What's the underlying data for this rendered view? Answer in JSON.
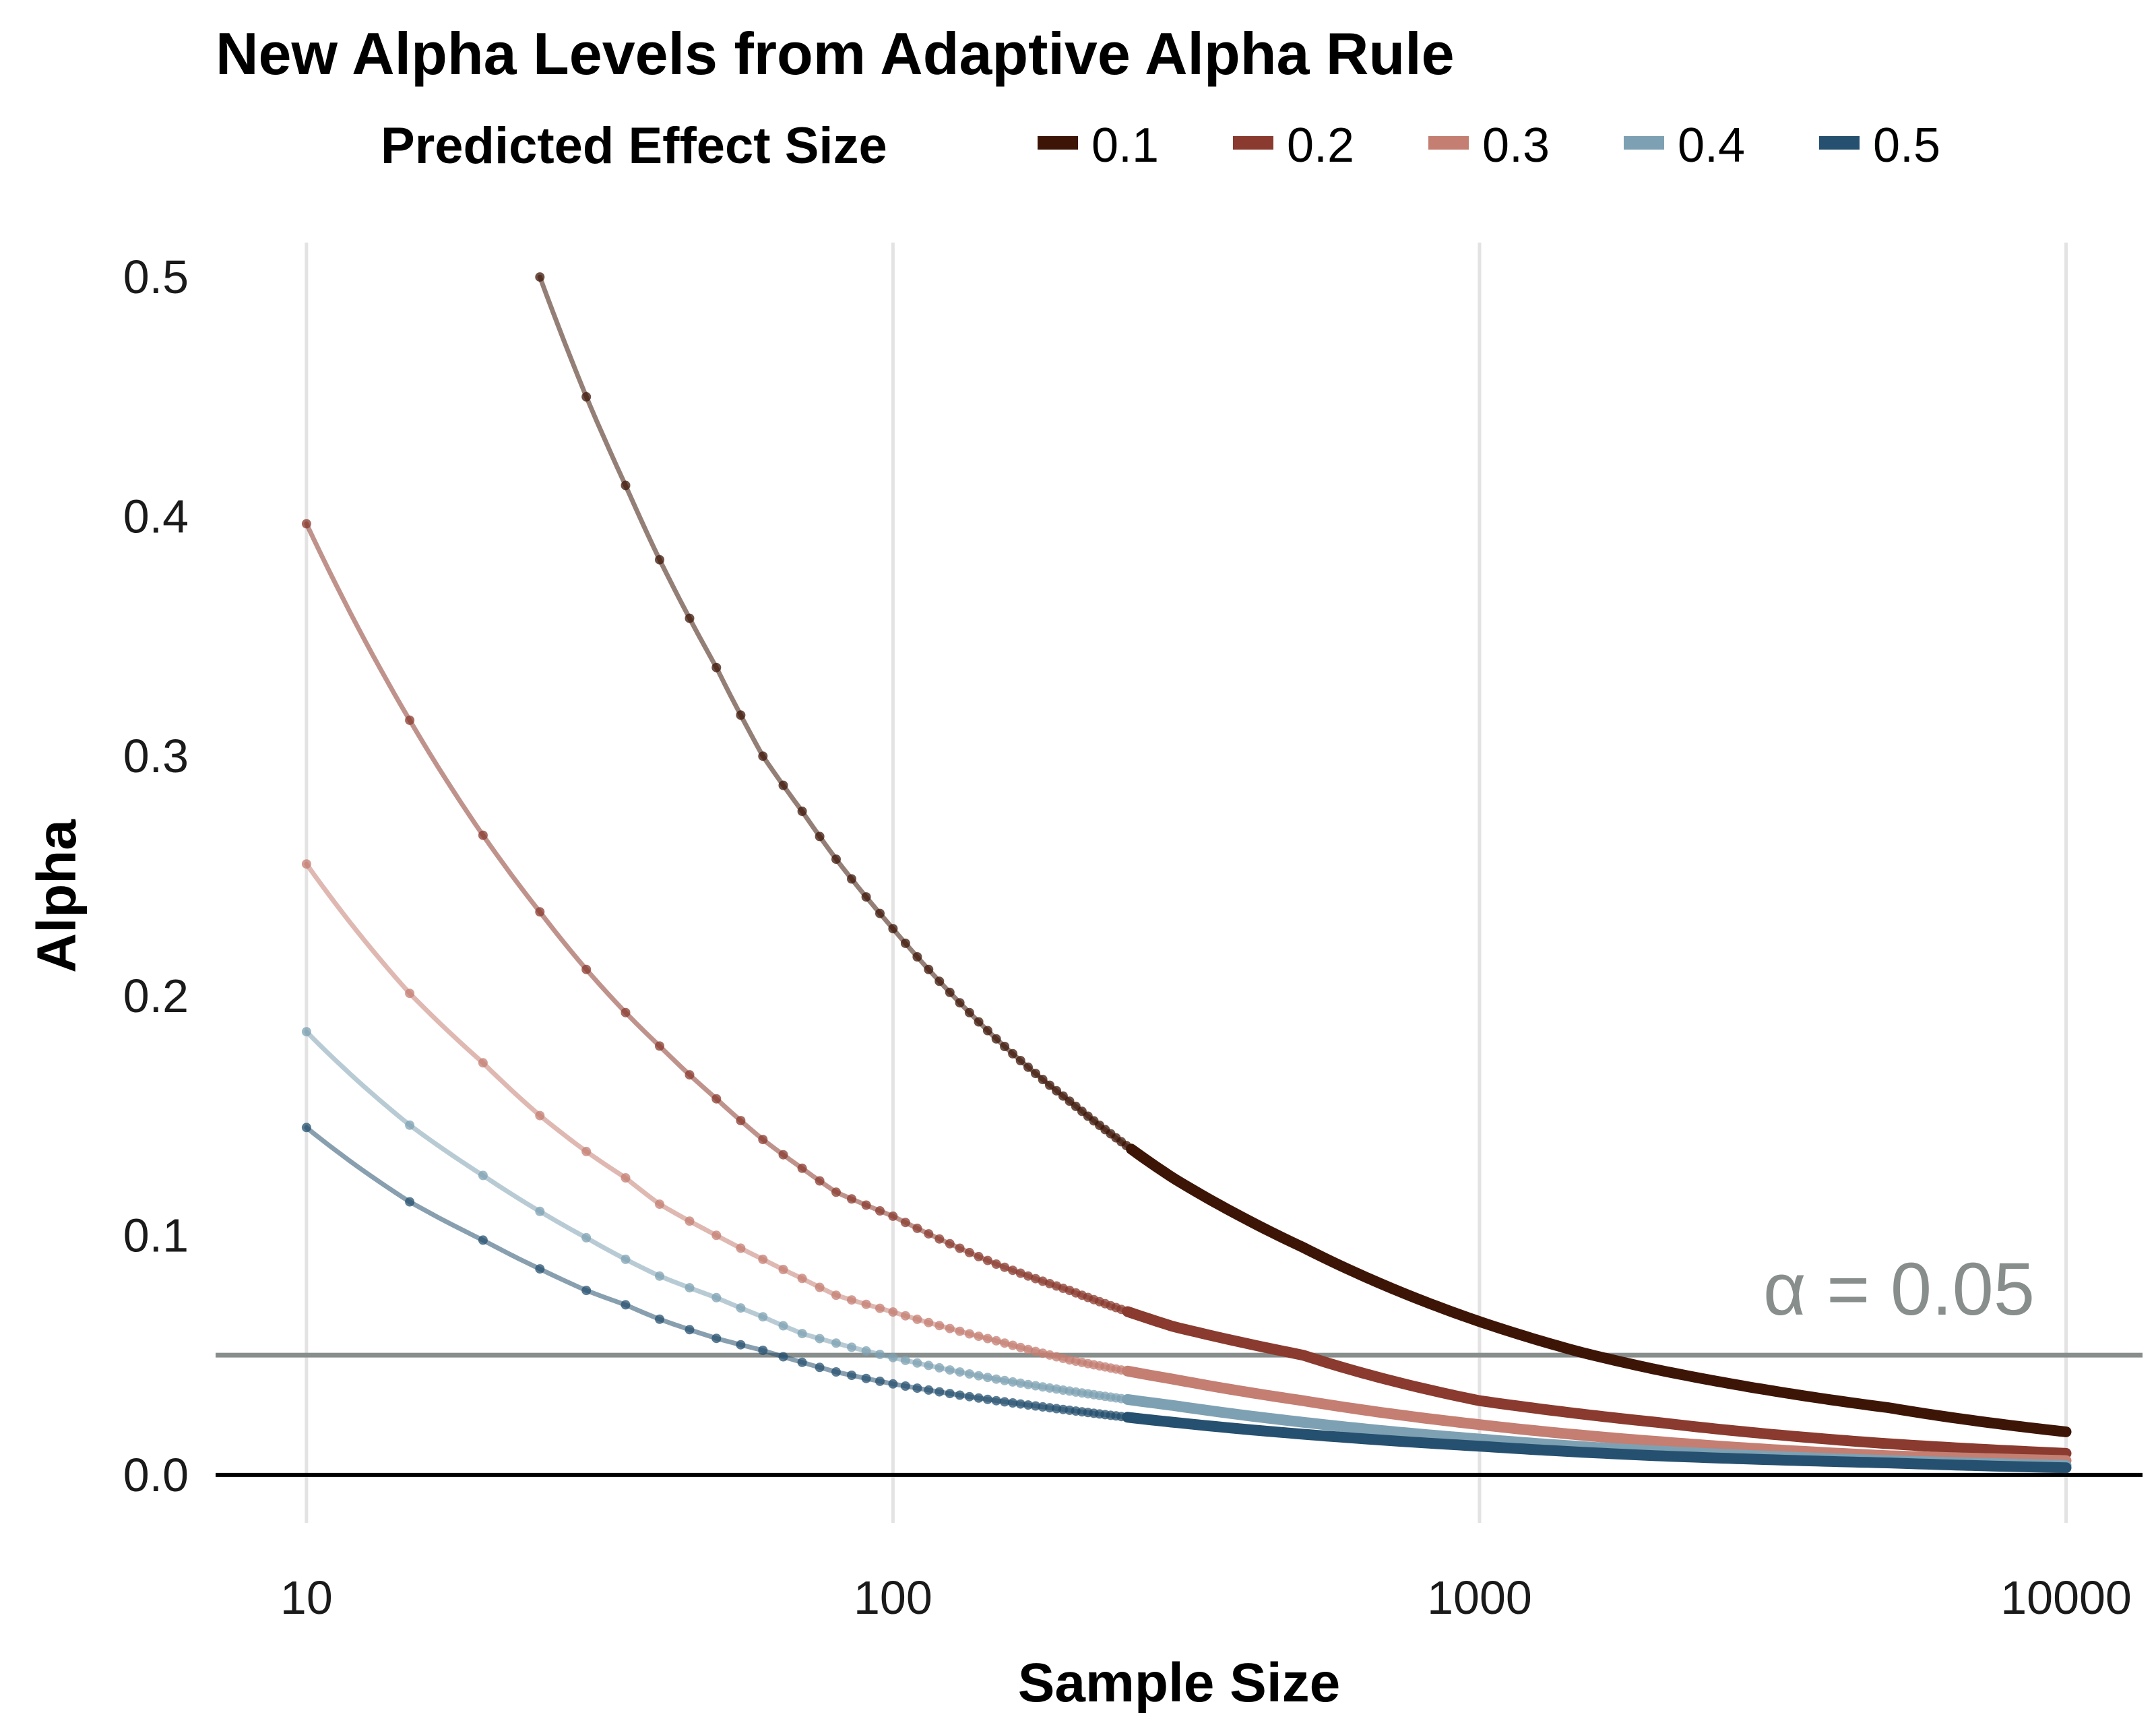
{
  "chart_data": {
    "type": "line",
    "title": "New Alpha Levels from Adaptive Alpha Rule",
    "xlabel": "Sample Size",
    "ylabel": "Alpha",
    "x_scale": "log10",
    "xlim": [
      7,
      13500
    ],
    "ylim": [
      -0.02,
      0.52
    ],
    "x_ticks": [
      10,
      100,
      1000,
      10000
    ],
    "x_tick_labels": [
      "10",
      "100",
      "1000",
      "10000"
    ],
    "y_ticks": [
      0,
      0.1,
      0.2,
      0.3,
      0.4,
      0.5
    ],
    "y_tick_labels": [
      "0.0",
      "0.1",
      "0.2",
      "0.3",
      "0.4",
      "0.5"
    ],
    "grid": "vertical major only",
    "legend": {
      "title": "Predicted Effect Size",
      "placement": "top",
      "entries": [
        "0.1",
        "0.2",
        "0.3",
        "0.4",
        "0.5"
      ]
    },
    "reference_lines": [
      {
        "axis": "y",
        "value": 0.05,
        "label": "α = 0.05",
        "color": "#888e8b"
      },
      {
        "axis": "y",
        "value": 0,
        "color": "#000000"
      }
    ],
    "series": [
      {
        "name": "0.1",
        "color": "#3d1507",
        "x": [
          25,
          30,
          35,
          40,
          50,
          60,
          70,
          80,
          100,
          150,
          200,
          300,
          500,
          1000,
          1500,
          2000,
          3000,
          5000,
          10000
        ],
        "y": [
          0.5,
          0.45,
          0.413,
          0.382,
          0.337,
          0.3,
          0.277,
          0.257,
          0.228,
          0.182,
          0.156,
          0.124,
          0.095,
          0.064,
          0.051,
          0.044,
          0.036,
          0.028,
          0.018
        ]
      },
      {
        "name": "0.2",
        "color": "#8a3a2e",
        "x": [
          10,
          15,
          20,
          25,
          30,
          35,
          40,
          45,
          50,
          60,
          70,
          80,
          100,
          150,
          200,
          300,
          500,
          1000,
          2000,
          5000,
          10000
        ],
        "y": [
          0.397,
          0.315,
          0.267,
          0.235,
          0.211,
          0.193,
          0.179,
          0.167,
          0.157,
          0.14,
          0.128,
          0.118,
          0.108,
          0.088,
          0.077,
          0.062,
          0.05,
          0.031,
          0.022,
          0.013,
          0.009
        ]
      },
      {
        "name": "0.3",
        "color": "#c47e72",
        "x": [
          10,
          15,
          20,
          25,
          30,
          35,
          40,
          50,
          60,
          70,
          80,
          100,
          150,
          200,
          300,
          500,
          1000,
          2000,
          5000,
          10000
        ],
        "y": [
          0.255,
          0.201,
          0.172,
          0.15,
          0.135,
          0.124,
          0.113,
          0.1,
          0.09,
          0.082,
          0.075,
          0.068,
          0.056,
          0.048,
          0.04,
          0.031,
          0.021,
          0.014,
          0.008,
          0.006
        ]
      },
      {
        "name": "0.4",
        "color": "#7da1b3",
        "x": [
          10,
          15,
          20,
          25,
          30,
          35,
          40,
          50,
          60,
          70,
          80,
          100,
          150,
          200,
          300,
          500,
          1000,
          2000,
          5000,
          10000
        ],
        "y": [
          0.185,
          0.146,
          0.125,
          0.11,
          0.099,
          0.09,
          0.083,
          0.074,
          0.066,
          0.059,
          0.055,
          0.049,
          0.04,
          0.035,
          0.029,
          0.022,
          0.015,
          0.01,
          0.006,
          0.004
        ]
      },
      {
        "name": "0.5",
        "color": "#26506f",
        "x": [
          10,
          15,
          20,
          25,
          30,
          35,
          40,
          50,
          60,
          70,
          80,
          100,
          150,
          200,
          300,
          500,
          1000,
          2000,
          5000,
          10000
        ],
        "y": [
          0.145,
          0.114,
          0.098,
          0.086,
          0.077,
          0.071,
          0.065,
          0.057,
          0.052,
          0.047,
          0.043,
          0.038,
          0.031,
          0.027,
          0.022,
          0.017,
          0.012,
          0.008,
          0.005,
          0.003
        ]
      }
    ]
  }
}
